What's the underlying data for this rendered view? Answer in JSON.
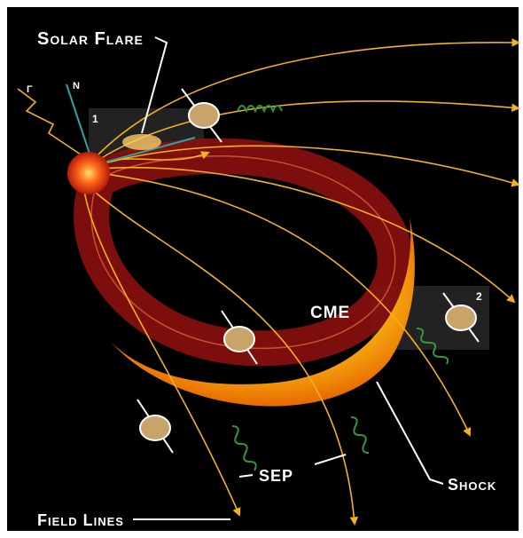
{
  "labels": {
    "solar_flare": "Solar Flare",
    "gamma": "γ",
    "neutron": "n",
    "box_1": "1",
    "box_2": "2",
    "cme": "CME",
    "sep": "SEP",
    "shock": "Shock",
    "field_lines": "Field Lines"
  }
}
